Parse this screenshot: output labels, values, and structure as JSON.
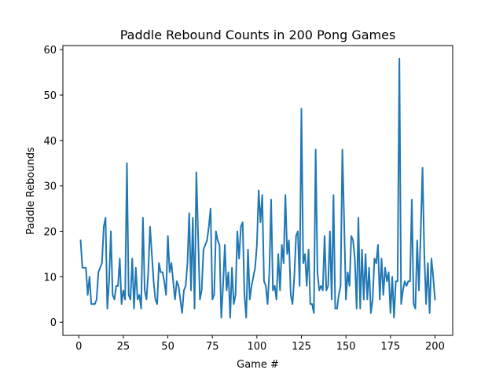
{
  "chart_data": {
    "type": "line",
    "title": "Paddle Rebound Counts in 200 Pong Games",
    "xlabel": "Game #",
    "ylabel": "Paddle Rebounds",
    "xlim": [
      -8.95,
      209.95
    ],
    "ylim": [
      -2.9,
      60.9
    ],
    "xticks": [
      0,
      25,
      50,
      75,
      100,
      125,
      150,
      175,
      200
    ],
    "yticks": [
      0,
      10,
      20,
      30,
      40,
      50,
      60
    ],
    "grid": false,
    "line_color": "#1f77b4",
    "series": [
      {
        "x": [
          1,
          2,
          3,
          4,
          5,
          6,
          7,
          8,
          9,
          10,
          11,
          12,
          13,
          14,
          15,
          16,
          17,
          18,
          19,
          20,
          21,
          22,
          23,
          24,
          25,
          26,
          27,
          28,
          29,
          30,
          31,
          32,
          33,
          34,
          35,
          36,
          37,
          38,
          39,
          40,
          41,
          42,
          43,
          44,
          45,
          46,
          47,
          48,
          49,
          50,
          51,
          52,
          53,
          54,
          55,
          56,
          57,
          58,
          59,
          60,
          61,
          62,
          63,
          64,
          65,
          66,
          67,
          68,
          69,
          70,
          71,
          72,
          73,
          74,
          75,
          76,
          77,
          78,
          79,
          80,
          81,
          82,
          83,
          84,
          85,
          86,
          87,
          88,
          89,
          90,
          91,
          92,
          93,
          94,
          95,
          96,
          97,
          98,
          99,
          100,
          101,
          102,
          103,
          104,
          105,
          106,
          107,
          108,
          109,
          110,
          111,
          112,
          113,
          114,
          115,
          116,
          117,
          118,
          119,
          120,
          121,
          122,
          123,
          124,
          125,
          126,
          127,
          128,
          129,
          130,
          131,
          132,
          133,
          134,
          135,
          136,
          137,
          138,
          139,
          140,
          141,
          142,
          143,
          144,
          145,
          146,
          147,
          148,
          149,
          150,
          151,
          152,
          153,
          154,
          155,
          156,
          157,
          158,
          159,
          160,
          161,
          162,
          163,
          164,
          165,
          166,
          167,
          168,
          169,
          170,
          171,
          172,
          173,
          174,
          175,
          176,
          177,
          178,
          179,
          180,
          181,
          182,
          183,
          184,
          185,
          186,
          187,
          188,
          189,
          190,
          191,
          192,
          193,
          194,
          195,
          196,
          197,
          198,
          199,
          200
        ],
        "values": [
          18,
          12,
          12,
          12,
          6,
          10,
          4,
          4,
          4,
          5,
          11,
          12,
          13,
          21,
          23,
          3,
          9,
          20,
          6,
          5,
          8,
          8,
          14,
          4,
          7,
          5,
          35,
          6,
          5,
          14,
          3,
          12,
          5,
          6,
          3,
          23,
          7,
          5,
          11,
          21,
          15,
          9,
          5,
          4,
          13,
          11,
          11,
          9,
          6,
          19,
          11,
          13,
          9,
          5,
          9,
          8,
          5,
          2,
          7,
          8,
          13,
          24,
          7,
          23,
          3,
          33,
          19,
          5,
          7,
          16,
          17,
          18,
          21,
          25,
          5,
          6,
          20,
          18,
          17,
          1,
          8,
          17,
          7,
          11,
          1,
          12,
          4,
          6,
          20,
          14,
          21,
          22,
          6,
          1,
          16,
          5,
          8,
          10,
          12,
          17,
          29,
          22,
          28,
          9,
          8,
          4,
          11,
          27,
          7,
          8,
          5,
          15,
          7,
          17,
          13,
          28,
          15,
          18,
          6,
          4,
          10,
          19,
          20,
          8,
          47,
          13,
          15,
          8,
          16,
          4,
          4,
          2,
          38,
          11,
          7,
          8,
          7,
          19,
          7,
          8,
          20,
          5,
          28,
          3,
          3,
          6,
          8,
          38,
          22,
          5,
          11,
          8,
          19,
          18,
          14,
          3,
          23,
          3,
          16,
          5,
          15,
          5,
          12,
          2,
          5,
          14,
          13,
          17,
          5,
          14,
          6,
          12,
          9,
          11,
          2,
          10,
          1,
          9,
          9,
          58,
          4,
          7,
          9,
          8,
          9,
          9,
          27,
          4,
          3,
          18,
          7,
          20,
          34,
          15,
          4,
          13,
          2,
          14,
          10,
          5
        ]
      }
    ]
  }
}
